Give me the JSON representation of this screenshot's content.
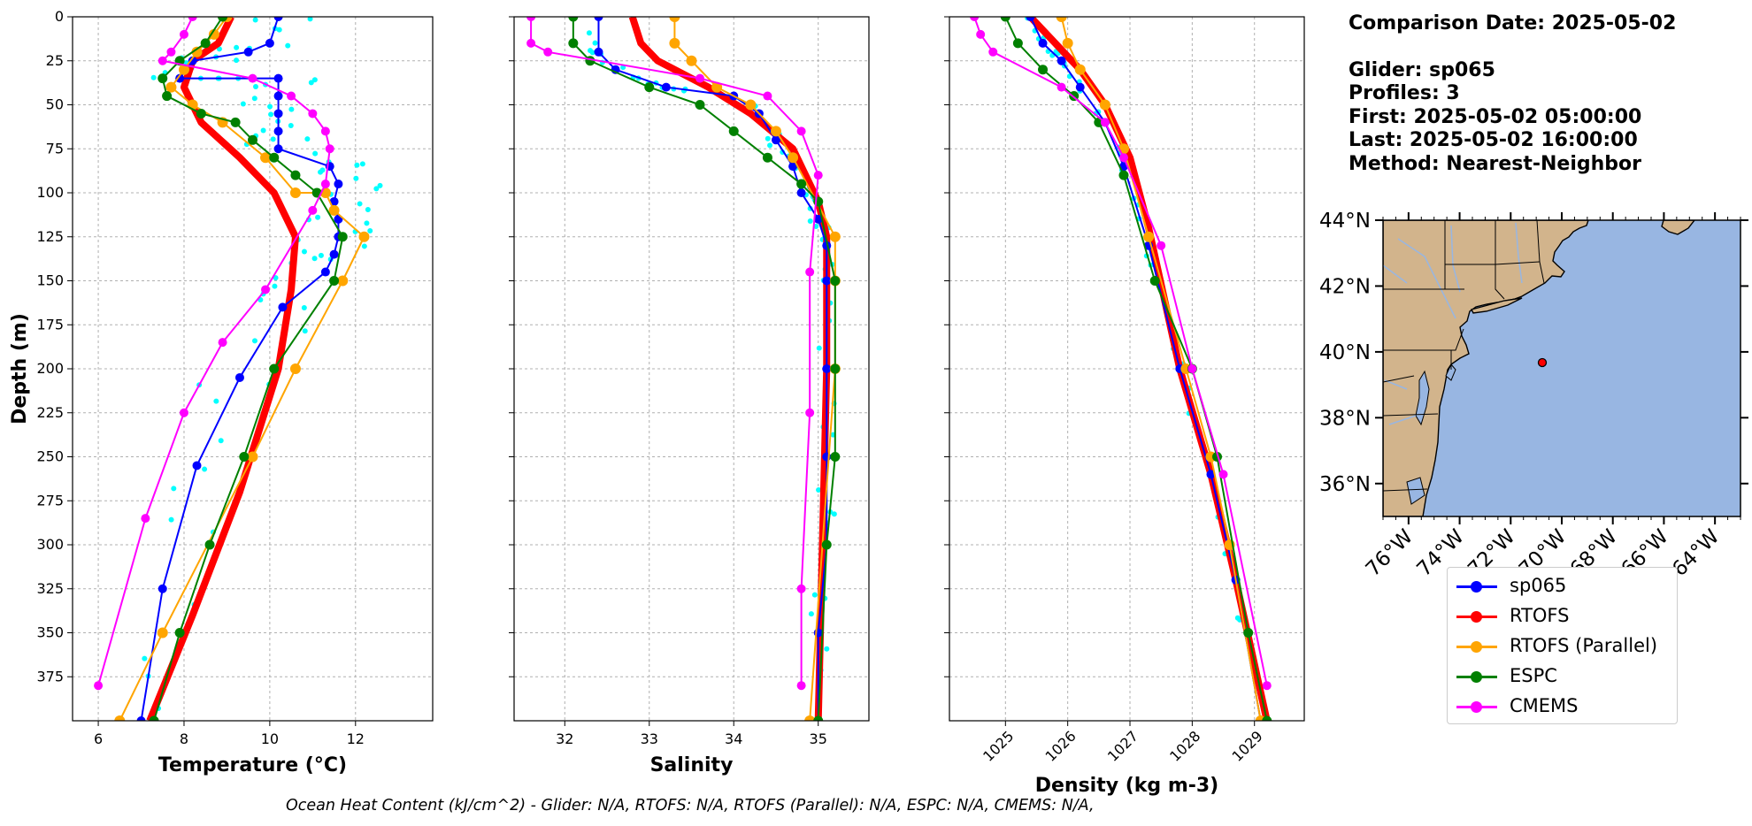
{
  "chart_data": [
    {
      "type": "line",
      "xlabel": "Temperature (°C)",
      "ylabel": "Depth (m)",
      "xlim": [
        5.4,
        13.8
      ],
      "ylim": [
        400,
        0
      ],
      "xticks": [
        "6",
        "8",
        "10",
        "12"
      ],
      "yticks": [
        "0",
        "25",
        "50",
        "75",
        "100",
        "125",
        "150",
        "175",
        "200",
        "225",
        "250",
        "275",
        "300",
        "325",
        "350",
        "375"
      ],
      "grid": true,
      "series": [
        {
          "name": "sp065",
          "color": "#0000ff",
          "x": [
            10.2,
            10.0,
            9.5,
            8.2,
            7.9,
            10.2,
            10.2,
            10.2,
            10.2,
            10.2,
            11.4,
            11.6,
            11.5,
            11.6,
            11.6,
            11.5,
            11.3,
            10.3,
            9.3,
            8.3,
            7.5,
            7.0
          ],
          "y": [
            0,
            15,
            20,
            25,
            35,
            35,
            45,
            55,
            65,
            75,
            85,
            95,
            105,
            115,
            125,
            135,
            145,
            165,
            205,
            255,
            325,
            400
          ]
        },
        {
          "name": "RTOFS",
          "color": "#ff0000",
          "x": [
            9.1,
            8.8,
            8.2,
            8.0,
            8.4,
            9.3,
            10.1,
            10.6,
            10.5,
            10.2,
            9.3,
            8.2,
            7.2
          ],
          "y": [
            0,
            15,
            25,
            40,
            60,
            80,
            100,
            125,
            155,
            200,
            270,
            340,
            400
          ]
        },
        {
          "name": "RTOFS (Parallel)",
          "color": "#ffa500",
          "x": [
            9.0,
            8.7,
            8.3,
            8.0,
            7.7,
            8.2,
            8.9,
            9.9,
            10.6,
            11.3,
            11.5,
            12.2,
            11.7,
            10.6,
            9.6,
            7.5,
            6.5
          ],
          "y": [
            0,
            10,
            20,
            30,
            40,
            50,
            60,
            80,
            100,
            100,
            110,
            125,
            150,
            200,
            250,
            350,
            400
          ]
        },
        {
          "name": "ESPC",
          "color": "#008000",
          "x": [
            8.9,
            8.5,
            7.9,
            7.5,
            7.6,
            8.4,
            9.2,
            9.6,
            10.1,
            10.6,
            11.1,
            11.7,
            11.5,
            10.1,
            9.4,
            8.6,
            7.9,
            7.3
          ],
          "y": [
            0,
            15,
            25,
            35,
            45,
            55,
            60,
            70,
            80,
            90,
            100,
            125,
            150,
            200,
            250,
            300,
            350,
            400
          ]
        },
        {
          "name": "CMEMS",
          "color": "#ff00ff",
          "x": [
            8.2,
            8.0,
            7.7,
            7.5,
            9.6,
            10.5,
            11.0,
            11.3,
            11.4,
            11.3,
            11.0,
            9.9,
            8.9,
            8.0,
            7.1,
            6.0
          ],
          "y": [
            0,
            10,
            20,
            25,
            35,
            45,
            55,
            65,
            75,
            95,
            110,
            155,
            185,
            225,
            285,
            380
          ]
        }
      ]
    },
    {
      "type": "line",
      "xlabel": "Salinity",
      "xlim": [
        31.4,
        35.6
      ],
      "ylim": [
        400,
        0
      ],
      "xticks": [
        "32",
        "33",
        "34",
        "35"
      ],
      "grid": true,
      "series": [
        {
          "name": "sp065",
          "x": [
            32.4,
            32.4,
            32.6,
            33.2,
            34.0,
            34.3,
            34.5,
            34.7,
            34.8,
            35.0,
            35.1,
            35.1,
            35.1,
            35.1,
            35.1,
            35.0,
            35.0
          ],
          "y": [
            0,
            20,
            30,
            40,
            45,
            55,
            70,
            85,
            100,
            115,
            130,
            150,
            200,
            250,
            300,
            350,
            400
          ]
        },
        {
          "name": "RTOFS",
          "x": [
            32.8,
            32.9,
            33.1,
            33.7,
            34.2,
            34.7,
            35.0,
            35.1,
            35.1,
            35.1,
            35.0
          ],
          "y": [
            0,
            15,
            25,
            40,
            55,
            75,
            105,
            125,
            150,
            200,
            400
          ]
        },
        {
          "name": "RTOFS (Parallel)",
          "x": [
            33.3,
            33.3,
            33.5,
            33.8,
            34.2,
            34.5,
            34.7,
            35.2,
            35.2,
            35.2,
            34.9
          ],
          "y": [
            0,
            15,
            25,
            40,
            50,
            65,
            80,
            125,
            150,
            200,
            400
          ]
        },
        {
          "name": "ESPC",
          "x": [
            32.1,
            32.1,
            32.3,
            33.0,
            33.6,
            34.0,
            34.4,
            34.8,
            35.0,
            35.2,
            35.2,
            35.2,
            35.1,
            35.0
          ],
          "y": [
            0,
            15,
            25,
            40,
            50,
            65,
            80,
            95,
            105,
            150,
            200,
            250,
            300,
            400
          ]
        },
        {
          "name": "CMEMS",
          "x": [
            31.6,
            31.6,
            31.8,
            33.6,
            34.4,
            34.8,
            35.0,
            34.9,
            34.9,
            34.8,
            34.8
          ],
          "y": [
            0,
            15,
            20,
            35,
            45,
            65,
            90,
            145,
            225,
            325,
            380
          ]
        }
      ]
    },
    {
      "type": "line",
      "xlabel": "Density (kg m-3)",
      "xlim": [
        1024.1,
        1029.8
      ],
      "ylim": [
        400,
        0
      ],
      "xticks": [
        "1025",
        "1026",
        "1027",
        "1028",
        "1029"
      ],
      "grid": true,
      "series": [
        {
          "name": "sp065",
          "x": [
            1025.4,
            1025.6,
            1025.9,
            1026.2,
            1026.6,
            1026.9,
            1027.3,
            1027.8,
            1028.3,
            1028.7,
            1029.1
          ],
          "y": [
            0,
            15,
            25,
            40,
            60,
            85,
            130,
            200,
            260,
            320,
            400
          ]
        },
        {
          "name": "RTOFS",
          "x": [
            1025.4,
            1025.8,
            1026.2,
            1026.6,
            1027.0,
            1027.3,
            1027.8,
            1028.3,
            1028.7,
            1029.2
          ],
          "y": [
            0,
            15,
            30,
            50,
            80,
            120,
            200,
            260,
            320,
            400
          ]
        },
        {
          "name": "RTOFS (Parallel)",
          "x": [
            1025.9,
            1026.0,
            1026.2,
            1026.6,
            1026.9,
            1027.3,
            1027.9,
            1028.3,
            1028.6,
            1029.1
          ],
          "y": [
            0,
            15,
            30,
            50,
            75,
            125,
            200,
            250,
            300,
            400
          ]
        },
        {
          "name": "ESPC",
          "x": [
            1025.0,
            1025.2,
            1025.6,
            1026.1,
            1026.5,
            1026.9,
            1027.4,
            1028.0,
            1028.4,
            1028.9,
            1029.2
          ],
          "y": [
            0,
            15,
            30,
            45,
            60,
            90,
            150,
            200,
            250,
            350,
            400
          ]
        },
        {
          "name": "CMEMS",
          "x": [
            1024.5,
            1024.6,
            1024.8,
            1025.9,
            1026.6,
            1026.9,
            1027.5,
            1028.0,
            1028.5,
            1029.2
          ],
          "y": [
            0,
            10,
            20,
            40,
            60,
            80,
            130,
            200,
            260,
            380
          ]
        }
      ]
    },
    {
      "type": "map",
      "lon_range": [
        -77,
        -63
      ],
      "lat_range": [
        35,
        44
      ],
      "lon_ticks": [
        "76°W",
        "74°W",
        "72°W",
        "70°W",
        "68°W",
        "66°W",
        "64°W"
      ],
      "lat_ticks": [
        "36°N",
        "38°N",
        "40°N",
        "42°N",
        "44°N"
      ],
      "glider_position": {
        "lon": -70.2,
        "lat": 39.85
      },
      "land_color": "#d2b48c",
      "ocean_color": "#98b6e2"
    }
  ],
  "info": {
    "comparison_date": "Comparison Date: 2025-05-02",
    "glider": "Glider: sp065",
    "profiles": "Profiles: 3",
    "first": "First: 2025-05-02 05:00:00",
    "last": "Last: 2025-05-02 16:00:00",
    "method": "Method: Nearest-Neighbor"
  },
  "legend": [
    {
      "label": "sp065",
      "color": "#0000ff"
    },
    {
      "label": "RTOFS",
      "color": "#ff0000"
    },
    {
      "label": "RTOFS (Parallel)",
      "color": "#ffa500"
    },
    {
      "label": "ESPC",
      "color": "#008000"
    },
    {
      "label": "CMEMS",
      "color": "#ff00ff"
    }
  ],
  "footer": "Ocean Heat Content (kJ/cm^2) - Glider: N/A,  RTOFS: N/A,  RTOFS (Parallel): N/A,  ESPC: N/A,  CMEMS: N/A,"
}
